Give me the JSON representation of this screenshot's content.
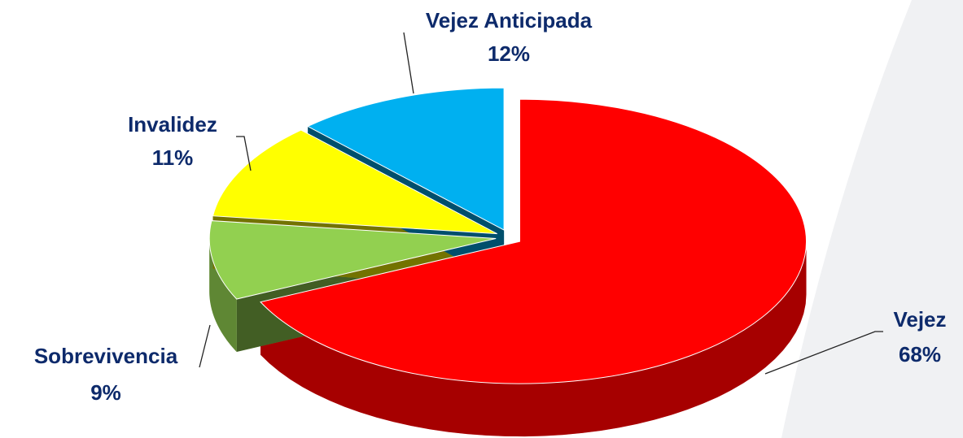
{
  "chart_data": {
    "type": "pie3d",
    "categories": [
      "Vejez",
      "Sobrevivencia",
      "Invalidez",
      "Vejez Anticipada"
    ],
    "values": [
      68,
      9,
      11,
      12
    ],
    "value_labels": [
      "68%",
      "9%",
      "11%",
      "12%"
    ],
    "colors": [
      "#ff0000",
      "#92d050",
      "#ffff00",
      "#00b0f0"
    ]
  }
}
